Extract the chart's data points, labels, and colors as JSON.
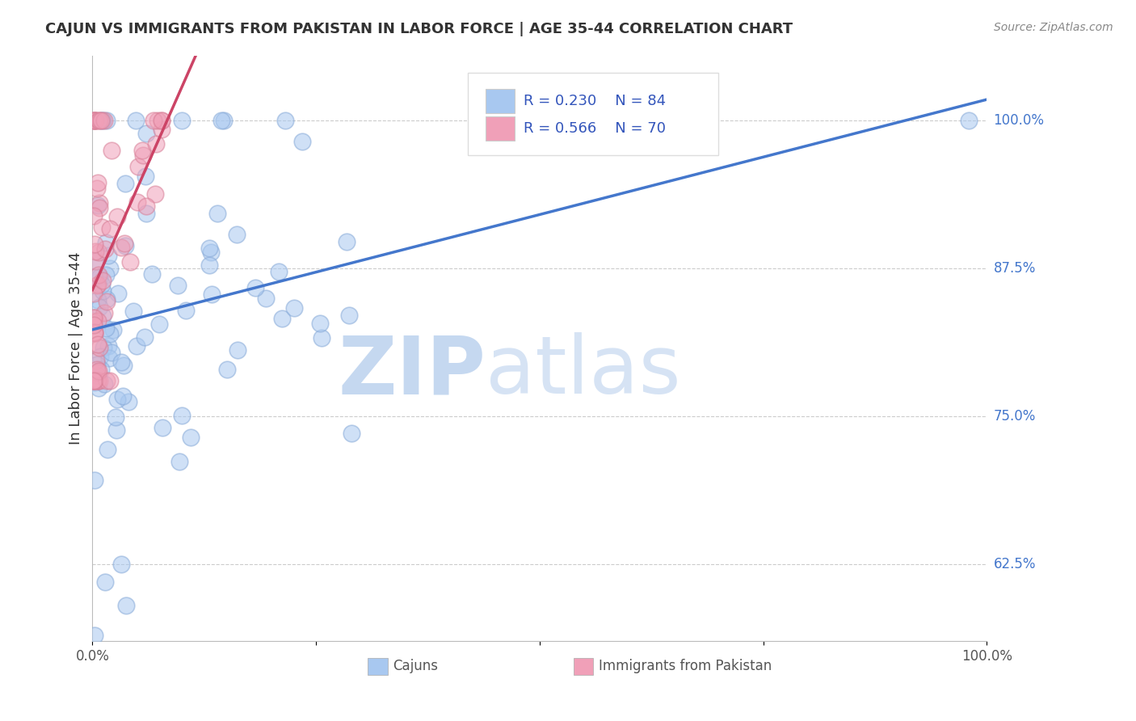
{
  "title": "CAJUN VS IMMIGRANTS FROM PAKISTAN IN LABOR FORCE | AGE 35-44 CORRELATION CHART",
  "source": "Source: ZipAtlas.com",
  "ylabel": "In Labor Force | Age 35-44",
  "watermark_zip": "ZIP",
  "watermark_atlas": "atlas",
  "legend_blue_r": "R = 0.230",
  "legend_blue_n": "N = 84",
  "legend_pink_r": "R = 0.566",
  "legend_pink_n": "N = 70",
  "legend_blue_label": "Cajuns",
  "legend_pink_label": "Immigrants from Pakistan",
  "xlim": [
    0.0,
    1.0
  ],
  "ylim": [
    0.56,
    1.055
  ],
  "yticks": [
    0.625,
    0.75,
    0.875,
    1.0
  ],
  "ytick_labels": [
    "62.5%",
    "75.0%",
    "87.5%",
    "100.0%"
  ],
  "xticks": [
    0.0,
    0.25,
    0.5,
    0.75,
    1.0
  ],
  "blue_scatter_color": "#a8c8f0",
  "blue_edge_color": "#88aad8",
  "pink_scatter_color": "#f0a0b8",
  "pink_edge_color": "#d88098",
  "blue_line_color": "#4477cc",
  "pink_line_color": "#cc4466",
  "ytick_label_color": "#4477cc",
  "background_color": "#ffffff",
  "grid_color": "#cccccc",
  "title_color": "#333333",
  "source_color": "#888888",
  "legend_text_color": "#3355bb",
  "ylabel_color": "#333333",
  "bottom_legend_color": "#555555"
}
